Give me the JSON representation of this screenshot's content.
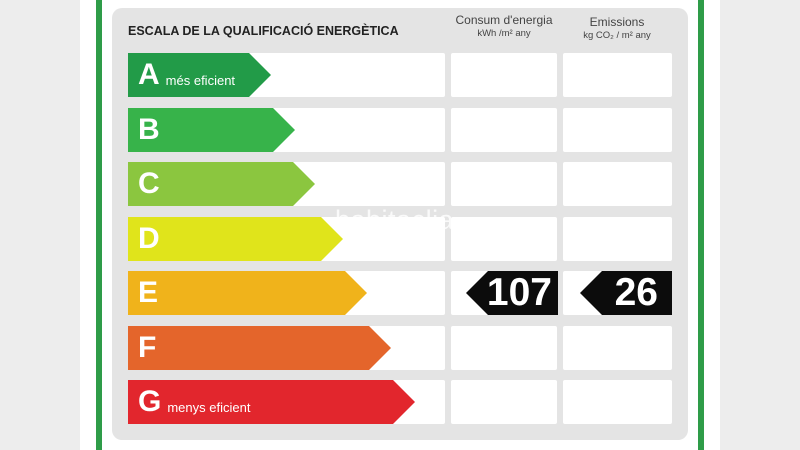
{
  "title": "ESCALA DE LA QUALIFICACIÓ ENERGÈTICA",
  "columns": {
    "energy": {
      "label": "Consum d'energia",
      "unit": "kWh /m² any"
    },
    "emissions": {
      "label": "Emissions",
      "unit": "kg CO₂ / m² any"
    }
  },
  "ratings": [
    {
      "letter": "A",
      "desc": "més eficient",
      "color": "#229b48"
    },
    {
      "letter": "B",
      "desc": "",
      "color": "#37b34a"
    },
    {
      "letter": "C",
      "desc": "",
      "color": "#8bc63f"
    },
    {
      "letter": "D",
      "desc": "",
      "color": "#e0e41b"
    },
    {
      "letter": "E",
      "desc": "",
      "color": "#f0b31b"
    },
    {
      "letter": "F",
      "desc": "",
      "color": "#e4652b"
    },
    {
      "letter": "G",
      "desc": "menys eficient",
      "color": "#e2262d"
    }
  ],
  "current_rating": "E",
  "energy_value": "107",
  "emissions_value": "26",
  "watermark": "habitaclia"
}
